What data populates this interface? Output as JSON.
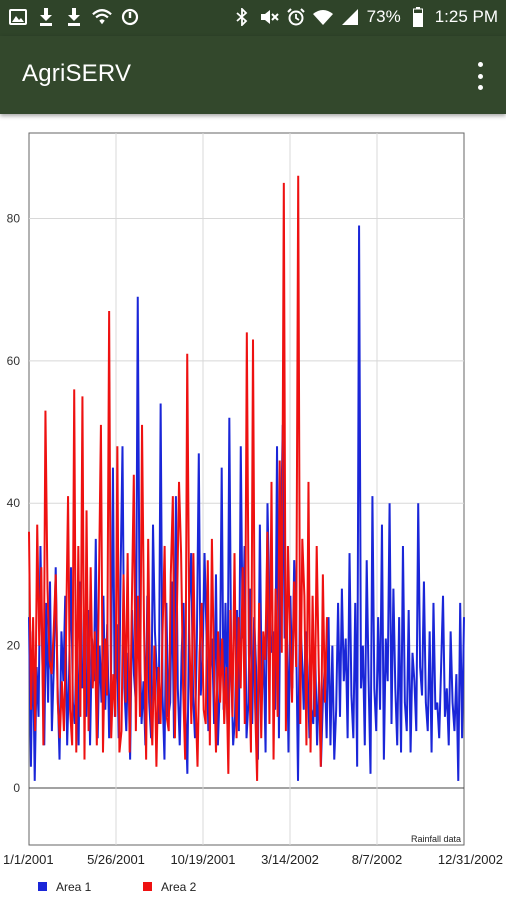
{
  "status_bar": {
    "battery_pct": "73%",
    "time": "1:25 PM",
    "left_icons": [
      "image-icon",
      "download-icon",
      "download-icon",
      "wifi-shield-icon",
      "sync-icon"
    ],
    "right_icons": [
      "bluetooth-icon",
      "mute-icon",
      "alarm-icon",
      "wifi-icon",
      "signal-icon",
      "battery-icon"
    ]
  },
  "app_bar": {
    "title": "AgriSERV",
    "menu_icon": "overflow-menu-icon"
  },
  "chart_data": {
    "type": "line",
    "xlabel": "",
    "ylabel": "",
    "x_ticks": [
      "1/1/2001",
      "5/26/2001",
      "10/19/2001",
      "3/14/2002",
      "8/7/2002",
      "12/31/2002"
    ],
    "y_ticks": [
      0,
      20,
      40,
      60,
      80
    ],
    "ylim": [
      -8,
      92
    ],
    "x_range": [
      "1/1/2001",
      "12/31/2002"
    ],
    "grid": true,
    "legend_position": "bottom",
    "annotation": "Rainfall data",
    "series": [
      {
        "name": "Area 1",
        "color": "#1a26d8",
        "values": [
          24,
          3,
          22,
          1,
          17,
          10,
          34,
          18,
          6,
          26,
          12,
          29,
          8,
          17,
          31,
          14,
          4,
          22,
          15,
          27,
          6,
          16,
          31,
          12,
          9,
          22,
          6,
          29,
          14,
          18,
          10,
          25,
          6,
          21,
          15,
          35,
          7,
          20,
          12,
          27,
          11,
          23,
          7,
          16,
          45,
          10,
          23,
          7,
          30,
          48,
          14,
          8,
          19,
          4,
          25,
          16,
          12,
          69,
          22,
          9,
          15,
          6,
          27,
          12,
          7,
          37,
          22,
          16,
          9,
          54,
          13,
          4,
          26,
          10,
          12,
          29,
          7,
          41,
          14,
          6,
          19,
          26,
          11,
          2,
          26,
          33,
          13,
          7,
          21,
          47,
          13,
          18,
          33,
          22,
          8,
          16,
          21,
          9,
          30,
          6,
          14,
          45,
          11,
          26,
          9,
          52,
          17,
          6,
          10,
          25,
          8,
          48,
          21,
          34,
          7,
          12,
          28,
          9,
          24,
          17,
          4,
          37,
          13,
          19,
          5,
          40,
          26,
          19,
          22,
          11,
          48,
          7,
          35,
          51,
          21,
          26,
          5,
          27,
          14,
          32,
          22,
          1,
          25,
          19,
          11,
          22,
          17,
          7,
          11,
          9,
          19,
          6,
          15,
          3,
          12,
          17,
          7,
          24,
          6,
          20,
          4,
          11,
          26,
          10,
          28,
          15,
          21,
          7,
          33,
          13,
          7,
          26,
          3,
          79,
          14,
          20,
          6,
          32,
          15,
          2,
          41,
          14,
          8,
          24,
          11,
          37,
          4,
          21,
          15,
          40,
          9,
          28,
          14,
          6,
          24,
          5,
          34,
          12,
          8,
          25,
          5,
          19,
          15,
          8,
          40,
          17,
          13,
          29,
          12,
          8,
          22,
          5,
          26,
          11,
          12,
          7,
          17,
          27,
          10,
          14,
          6,
          22,
          12,
          8,
          16,
          1,
          26,
          7,
          24
        ]
      },
      {
        "name": "Area 2",
        "color": "#ee1111",
        "values": [
          36,
          11,
          24,
          8,
          37,
          20,
          31,
          6,
          53,
          28,
          18,
          16,
          22,
          30,
          12,
          7,
          15,
          8,
          21,
          41,
          11,
          6,
          56,
          5,
          34,
          10,
          55,
          4,
          39,
          8,
          31,
          14,
          22,
          6,
          28,
          51,
          5,
          21,
          13,
          67,
          7,
          16,
          10,
          48,
          5,
          8,
          30,
          12,
          33,
          5,
          25,
          44,
          8,
          27,
          10,
          51,
          22,
          4,
          35,
          13,
          6,
          20,
          3,
          17,
          9,
          22,
          34,
          10,
          8,
          30,
          41,
          7,
          25,
          43,
          33,
          14,
          4,
          61,
          22,
          9,
          33,
          13,
          3,
          19,
          26,
          11,
          9,
          32,
          6,
          35,
          17,
          5,
          22,
          12,
          21,
          9,
          17,
          2,
          25,
          10,
          33,
          7,
          24,
          14,
          31,
          9,
          64,
          19,
          5,
          63,
          12,
          1,
          26,
          7,
          22,
          18,
          36,
          9,
          43,
          4,
          28,
          10,
          46,
          19,
          85,
          8,
          34,
          21,
          12,
          29,
          17,
          86,
          9,
          35,
          27,
          6,
          43,
          5,
          27,
          10,
          34,
          17,
          3,
          30,
          12,
          24
        ]
      }
    ]
  }
}
